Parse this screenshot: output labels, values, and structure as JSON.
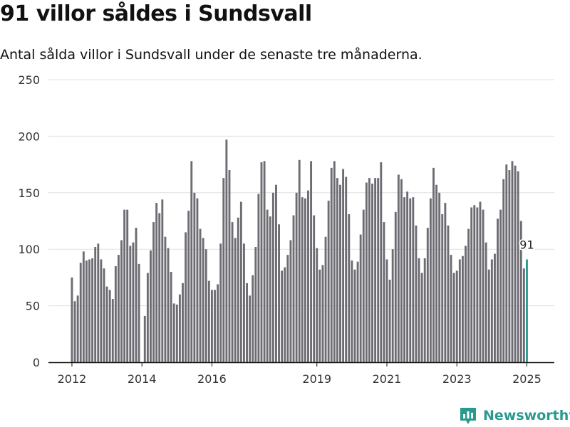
{
  "header": {
    "title": "91 villor såldes i Sundsvall",
    "subtitle": "Antal sålda villor i Sundsvall under de senaste tre månaderna."
  },
  "brand": {
    "name": "Newsworthy",
    "icon": "bar-chart-logo-icon",
    "color": "#2b9a8e"
  },
  "colors": {
    "bar": "#6e6c73",
    "highlight": "#2b9a8e",
    "grid": "#e0e0e0",
    "axis": "#111111"
  },
  "chart_data": {
    "type": "bar",
    "title": "91 villor såldes i Sundsvall",
    "subtitle": "Antal sålda villor i Sundsvall under de senaste tre månaderna.",
    "xlabel": "",
    "ylabel": "",
    "ylim": [
      0,
      250
    ],
    "yticks": [
      0,
      50,
      100,
      150,
      200,
      250
    ],
    "grid": true,
    "xticks": [
      "2012",
      "2014",
      "2016",
      "2019",
      "2021",
      "2023",
      "2025"
    ],
    "xtick_index": [
      0,
      24,
      48,
      84,
      108,
      132,
      156
    ],
    "start": "2012-01",
    "frequency": "monthly",
    "highlight_index": 156,
    "highlight_label": "91",
    "values": [
      75,
      54,
      59,
      88,
      98,
      90,
      91,
      92,
      102,
      105,
      91,
      83,
      67,
      64,
      56,
      85,
      95,
      108,
      135,
      135,
      103,
      106,
      119,
      87,
      null,
      41,
      79,
      99,
      124,
      141,
      132,
      144,
      111,
      101,
      80,
      52,
      51,
      60,
      70,
      115,
      134,
      178,
      150,
      145,
      118,
      110,
      100,
      72,
      64,
      64,
      69,
      105,
      163,
      197,
      170,
      124,
      110,
      128,
      142,
      105,
      70,
      59,
      77,
      102,
      149,
      177,
      178,
      135,
      129,
      150,
      157,
      122,
      81,
      84,
      95,
      108,
      130,
      150,
      179,
      146,
      145,
      152,
      178,
      130,
      101,
      82,
      86,
      111,
      143,
      172,
      178,
      163,
      157,
      171,
      164,
      131,
      90,
      82,
      89,
      113,
      135,
      159,
      163,
      158,
      163,
      163,
      177,
      124,
      91,
      73,
      100,
      133,
      166,
      162,
      146,
      151,
      145,
      146,
      121,
      92,
      79,
      92,
      119,
      145,
      172,
      157,
      150,
      131,
      141,
      121,
      95,
      79,
      81,
      91,
      94,
      103,
      118,
      137,
      139,
      137,
      142,
      135,
      106,
      82,
      91,
      96,
      127,
      135,
      162,
      175,
      170,
      178,
      174,
      169,
      125,
      83,
      91
    ]
  }
}
